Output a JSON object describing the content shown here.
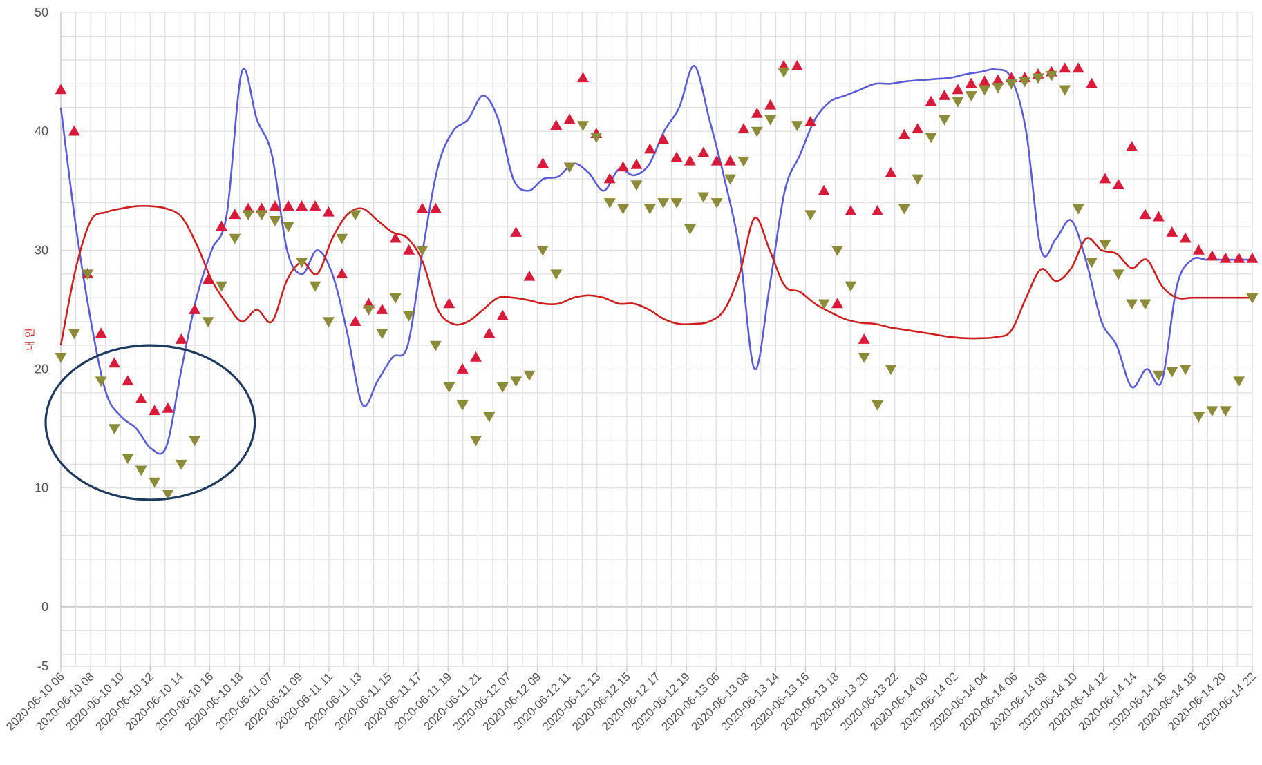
{
  "chart_data": {
    "type": "line",
    "title": "",
    "xlabel": "",
    "ylabel": "내 인",
    "ylim": [
      -5,
      50
    ],
    "yticks": [
      -5,
      0,
      10,
      20,
      30,
      40,
      50
    ],
    "grid": true,
    "legend": "none",
    "x_tick_labels": [
      "2020-06-10 06",
      "2020-06-10 08",
      "2020-06-10 10",
      "2020-06-10 12",
      "2020-06-10 14",
      "2020-06-10 16",
      "2020-06-10 18",
      "2020-06-11 07",
      "2020-06-11 09",
      "2020-06-11 11",
      "2020-06-11 13",
      "2020-06-11 15",
      "2020-06-11 17",
      "2020-06-11 19",
      "2020-06-11 21",
      "2020-06-12 07",
      "2020-06-12 09",
      "2020-06-12 11",
      "2020-06-12 13",
      "2020-06-12 15",
      "2020-06-12 17",
      "2020-06-12 19",
      "2020-06-13 06",
      "2020-06-13 08",
      "2020-06-13 14",
      "2020-06-13 16",
      "2020-06-13 18",
      "2020-06-13 20",
      "2020-06-13 22",
      "2020-06-14 00",
      "2020-06-14 02",
      "2020-06-14 04",
      "2020-06-14 06",
      "2020-06-14 08",
      "2020-06-14 10",
      "2020-06-14 12",
      "2020-06-14 14",
      "2020-06-14 16",
      "2020-06-14 18",
      "2020-06-14 20",
      "2020-06-14 22"
    ],
    "series": [
      {
        "type": "line",
        "color": "#5b5bd6",
        "values": [
          42,
          32,
          24,
          18,
          16,
          15,
          13.3,
          13.5,
          20,
          26,
          30,
          33,
          45,
          41,
          38,
          30,
          28,
          30,
          28,
          23,
          17,
          19,
          21,
          22,
          30,
          37,
          40,
          41,
          43,
          41,
          36,
          35,
          36,
          36.2,
          37.3,
          36.5,
          35,
          36.8,
          36.3,
          37.2,
          40,
          42,
          45.5,
          41,
          36,
          30,
          20,
          27,
          35,
          38,
          41,
          42.5,
          43,
          43.5,
          44,
          44,
          44.2,
          44.3,
          44.4,
          44.5,
          44.8,
          45,
          45.2,
          44.5,
          40,
          30,
          31,
          32.5,
          29,
          24,
          22,
          18.5,
          20,
          19,
          27,
          29.2,
          29.2,
          29.2,
          29.2,
          29.2
        ]
      },
      {
        "type": "line",
        "color": "#cc1f1f",
        "values": [
          22,
          28.5,
          32.5,
          33.2,
          33.5,
          33.7,
          33.7,
          33.5,
          32.8,
          30.5,
          27.5,
          25.5,
          24,
          25,
          24,
          27.5,
          29,
          28,
          31,
          33,
          33.5,
          32.5,
          31.5,
          31,
          29,
          25,
          23.8,
          24,
          25,
          26,
          26,
          25.8,
          25.5,
          25.5,
          26,
          26.2,
          26,
          25.5,
          25.5,
          25,
          24.2,
          23.8,
          23.8,
          24,
          25,
          28,
          32.7,
          30,
          27,
          26.5,
          25.5,
          24.8,
          24.2,
          23.9,
          23.8,
          23.5,
          23.3,
          23.1,
          22.9,
          22.7,
          22.6,
          22.6,
          22.7,
          23.2,
          26,
          28.4,
          27.4,
          28.5,
          31,
          30,
          29.7,
          28.5,
          29.2,
          27,
          26,
          26,
          26,
          26,
          26,
          26
        ]
      },
      {
        "type": "scatter",
        "marker": "triangle-up",
        "color": "#d81b3a",
        "values": [
          43.5,
          40,
          28,
          23,
          20.5,
          19,
          17.5,
          16.5,
          16.7,
          22.5,
          25,
          27.5,
          32,
          33,
          33.5,
          33.5,
          33.7,
          33.7,
          33.7,
          33.7,
          33.2,
          28,
          24,
          25.5,
          25,
          31,
          30,
          33.5,
          33.5,
          25.5,
          20,
          21,
          23,
          24.5,
          31.5,
          27.8,
          37.3,
          40.5,
          41,
          44.5,
          39.8,
          36,
          37,
          37.2,
          38.5,
          39.3,
          37.8,
          37.5,
          38.2,
          37.5,
          37.5,
          40.2,
          41.5,
          42.2,
          45.5,
          45.5,
          40.8,
          35,
          25.5,
          33.3,
          22.5,
          33.3,
          36.5,
          39.7,
          40.2,
          42.5,
          43,
          43.5,
          44,
          44.2,
          44.3,
          44.5,
          44.5,
          44.8,
          45,
          45.3,
          45.3,
          44,
          36,
          35.5,
          38.7,
          33,
          32.8,
          31.5,
          31,
          30,
          29.5,
          29.3,
          29.3,
          29.3
        ]
      },
      {
        "type": "scatter",
        "marker": "triangle-down",
        "color": "#8b8b3a",
        "values": [
          21,
          23,
          28,
          19,
          15,
          12.5,
          11.5,
          10.5,
          9.5,
          12,
          14,
          24,
          27,
          31,
          33,
          33,
          32.5,
          32,
          29,
          27,
          24,
          31,
          33,
          25,
          23,
          26,
          24.5,
          30,
          22,
          18.5,
          17,
          14,
          16,
          18.5,
          19,
          19.5,
          30,
          28,
          37,
          40.5,
          39.5,
          34,
          33.5,
          35.5,
          33.5,
          34,
          34,
          31.8,
          34.5,
          34,
          36,
          37.5,
          40,
          41,
          45,
          40.5,
          33,
          25.5,
          30,
          27,
          21,
          17,
          20,
          33.5,
          36,
          39.5,
          41,
          42.5,
          43,
          43.5,
          43.7,
          44,
          44.2,
          44.5,
          44.7,
          43.5,
          33.5,
          29,
          30.5,
          28,
          25.5,
          25.5,
          19.5,
          19.8,
          20,
          16,
          16.5,
          16.5,
          19,
          26
        ]
      }
    ],
    "annotations": [
      {
        "type": "ellipse",
        "color": "#1e3a5f",
        "x_range": [
          "2020-06-10 06",
          "2020-06-10 18"
        ],
        "y_range": [
          9,
          22
        ]
      }
    ]
  }
}
